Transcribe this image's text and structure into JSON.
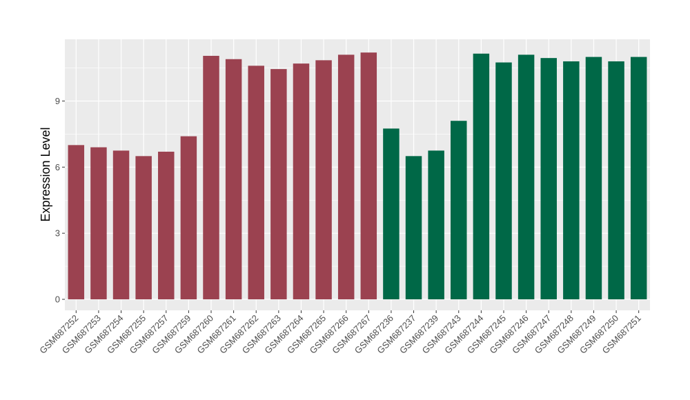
{
  "chart_data": {
    "type": "bar",
    "ylabel": "Expression Level",
    "xlabel": "",
    "ylim": [
      -0.5,
      11.8
    ],
    "yticks": [
      0,
      3,
      6,
      9
    ],
    "grid": true,
    "background": "#ebebeb",
    "gridline_color": "#ffffff",
    "colors": {
      "group1": "#9b4250",
      "group2": "#006847"
    },
    "categories": [
      "GSM687252",
      "GSM687253",
      "GSM687254",
      "GSM687255",
      "GSM687257",
      "GSM687259",
      "GSM687260",
      "GSM687261",
      "GSM687262",
      "GSM687263",
      "GSM687264",
      "GSM687265",
      "GSM687266",
      "GSM687267",
      "GSM687236",
      "GSM687237",
      "GSM687239",
      "GSM687243",
      "GSM687244",
      "GSM687245",
      "GSM687246",
      "GSM687247",
      "GSM687248",
      "GSM687249",
      "GSM687250",
      "GSM687251"
    ],
    "values": [
      7.0,
      6.9,
      6.75,
      6.5,
      6.7,
      7.4,
      11.05,
      10.9,
      10.6,
      10.45,
      10.7,
      10.85,
      11.1,
      11.2,
      7.75,
      6.5,
      6.75,
      8.1,
      11.15,
      10.75,
      11.1,
      10.95,
      10.8,
      11.0,
      10.8,
      11.0
    ],
    "groups": [
      1,
      1,
      1,
      1,
      1,
      1,
      1,
      1,
      1,
      1,
      1,
      1,
      1,
      1,
      2,
      2,
      2,
      2,
      2,
      2,
      2,
      2,
      2,
      2,
      2,
      2
    ]
  }
}
